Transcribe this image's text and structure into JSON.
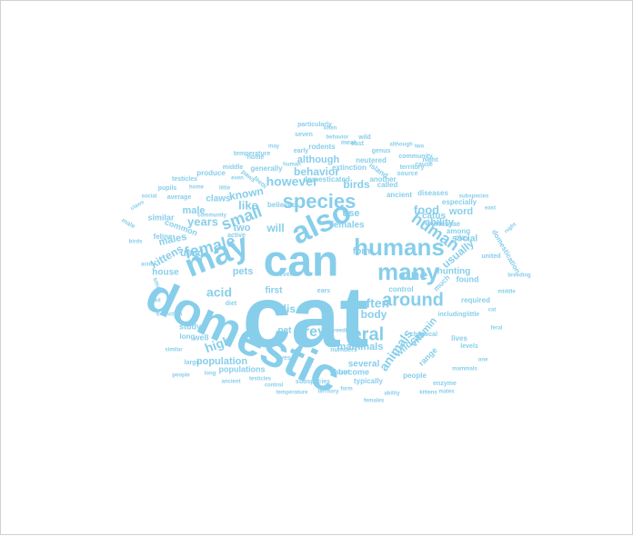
{
  "word_cloud": {
    "color": "#87ceeb",
    "words": [
      "cat",
      "domestic",
      "can",
      "may",
      "also",
      "humans",
      "species",
      "feral",
      "many",
      "around",
      "human",
      "small",
      "however",
      "female",
      "one",
      "prey",
      "animals",
      "often",
      "acid",
      "felis",
      "body",
      "mammals",
      "years",
      "known",
      "behavior",
      "birds",
      "food",
      "word",
      "males",
      "like",
      "used",
      "although",
      "male",
      "high",
      "population",
      "kittens",
      "pets",
      "will",
      "two",
      "claws",
      "use",
      "catus",
      "ability",
      "hunting",
      "vitamin",
      "first",
      "social",
      "wildcat",
      "several",
      "females",
      "populations",
      "house",
      "study",
      "well",
      "pet",
      "found",
      "form",
      "usually",
      "rodents",
      "domesticated",
      "extinction",
      "neutered",
      "called",
      "territory",
      "particularly",
      "generally",
      "common",
      "similar",
      "average",
      "feline",
      "temperature",
      "produce",
      "become",
      "typically",
      "people",
      "enzyme",
      "required",
      "control",
      "range",
      "much",
      "large",
      "long",
      "believed",
      "teeth",
      "subspecies",
      "source",
      "play",
      "diseases",
      "ancient",
      "island",
      "another",
      "east",
      "genus",
      "meat",
      "pupils",
      "testicles",
      "vertebrae",
      "especially",
      "community",
      "cause",
      "lives",
      "among",
      "night",
      "united",
      "domestication",
      "little",
      "levels",
      "hunt",
      "numbers",
      "breeding",
      "diet",
      "active",
      "home",
      "early",
      "wild",
      "paws",
      "middle",
      "seven",
      "eyes",
      "even",
      "ears",
      "chemical",
      "including"
    ]
  }
}
